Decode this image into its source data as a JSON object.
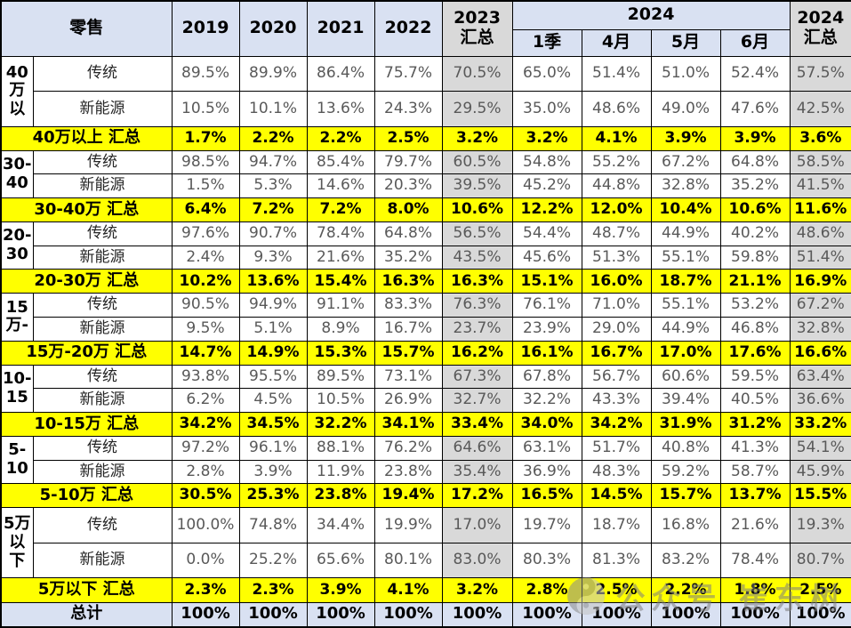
{
  "chart_data": {
    "type": "table",
    "title": "零售",
    "corner": "零售",
    "years": [
      "2019",
      "2020",
      "2021",
      "2022"
    ],
    "col_2023_summary": "2023\n汇总",
    "group_2024": "2024",
    "months": [
      "1季",
      "4月",
      "5月",
      "6月"
    ],
    "col_2024_summary": "2024\n汇总",
    "column_keys": [
      "2019",
      "2020",
      "2021",
      "2022",
      "2023汇总",
      "2024-1季",
      "2024-4月",
      "2024-5月",
      "2024-6月",
      "2024汇总"
    ],
    "groups": [
      {
        "label": "40\n万以",
        "rows": [
          {
            "name": "传统",
            "values": [
              "89.5%",
              "89.9%",
              "86.4%",
              "75.7%",
              "70.5%",
              "65.0%",
              "51.4%",
              "51.0%",
              "52.4%",
              "57.5%"
            ]
          },
          {
            "name": "新能源",
            "values": [
              "10.5%",
              "10.1%",
              "13.6%",
              "24.3%",
              "29.5%",
              "35.0%",
              "48.6%",
              "49.0%",
              "47.6%",
              "42.5%"
            ]
          }
        ],
        "summary": {
          "label": "40万以上 汇总",
          "values": [
            "1.7%",
            "2.2%",
            "2.2%",
            "2.5%",
            "3.2%",
            "3.2%",
            "4.1%",
            "3.9%",
            "3.9%",
            "3.6%"
          ]
        }
      },
      {
        "label": "30-\n40",
        "rows": [
          {
            "name": "传统",
            "values": [
              "98.5%",
              "94.7%",
              "85.4%",
              "79.7%",
              "60.5%",
              "54.8%",
              "55.2%",
              "67.2%",
              "64.8%",
              "58.5%"
            ]
          },
          {
            "name": "新能源",
            "values": [
              "1.5%",
              "5.3%",
              "14.6%",
              "20.3%",
              "39.5%",
              "45.2%",
              "44.8%",
              "32.8%",
              "35.2%",
              "41.5%"
            ]
          }
        ],
        "summary": {
          "label": "30-40万 汇总",
          "values": [
            "6.4%",
            "7.2%",
            "7.2%",
            "8.0%",
            "10.6%",
            "12.2%",
            "12.0%",
            "10.4%",
            "10.6%",
            "11.6%"
          ]
        }
      },
      {
        "label": "20-\n30",
        "rows": [
          {
            "name": "传统",
            "values": [
              "97.6%",
              "90.7%",
              "78.4%",
              "64.8%",
              "56.5%",
              "54.4%",
              "48.7%",
              "44.9%",
              "40.2%",
              "48.6%"
            ]
          },
          {
            "name": "新能源",
            "values": [
              "2.4%",
              "9.3%",
              "21.6%",
              "35.2%",
              "43.5%",
              "45.6%",
              "51.3%",
              "55.1%",
              "59.8%",
              "51.4%"
            ]
          }
        ],
        "summary": {
          "label": "20-30万 汇总",
          "values": [
            "10.2%",
            "13.6%",
            "15.4%",
            "16.3%",
            "16.3%",
            "15.1%",
            "16.0%",
            "18.7%",
            "21.1%",
            "16.9%"
          ]
        }
      },
      {
        "label": "15\n万-",
        "rows": [
          {
            "name": "传统",
            "values": [
              "90.5%",
              "94.9%",
              "91.1%",
              "83.3%",
              "76.3%",
              "76.1%",
              "71.0%",
              "55.1%",
              "53.2%",
              "67.2%"
            ]
          },
          {
            "name": "新能源",
            "values": [
              "9.5%",
              "5.1%",
              "8.9%",
              "16.7%",
              "23.7%",
              "23.9%",
              "29.0%",
              "44.9%",
              "46.8%",
              "32.8%"
            ]
          }
        ],
        "summary": {
          "label": "15万-20万 汇总",
          "values": [
            "14.7%",
            "14.9%",
            "15.3%",
            "15.7%",
            "16.2%",
            "16.1%",
            "16.7%",
            "17.0%",
            "17.6%",
            "16.6%"
          ]
        }
      },
      {
        "label": "10-\n15",
        "rows": [
          {
            "name": "传统",
            "values": [
              "93.8%",
              "95.5%",
              "89.5%",
              "73.1%",
              "67.3%",
              "67.8%",
              "56.7%",
              "60.6%",
              "59.5%",
              "63.4%"
            ]
          },
          {
            "name": "新能源",
            "values": [
              "6.2%",
              "4.5%",
              "10.5%",
              "26.9%",
              "32.7%",
              "32.2%",
              "43.3%",
              "39.4%",
              "40.5%",
              "36.6%"
            ]
          }
        ],
        "summary": {
          "label": "10-15万 汇总",
          "values": [
            "34.2%",
            "34.5%",
            "32.2%",
            "34.1%",
            "33.4%",
            "34.0%",
            "34.2%",
            "31.9%",
            "31.2%",
            "33.2%"
          ]
        }
      },
      {
        "label": "5-\n10",
        "rows": [
          {
            "name": "传统",
            "values": [
              "97.2%",
              "96.1%",
              "88.1%",
              "76.2%",
              "64.6%",
              "63.1%",
              "51.7%",
              "40.8%",
              "41.3%",
              "54.1%"
            ]
          },
          {
            "name": "新能源",
            "values": [
              "2.8%",
              "3.9%",
              "11.9%",
              "23.8%",
              "35.4%",
              "36.9%",
              "48.3%",
              "59.2%",
              "58.7%",
              "45.9%"
            ]
          }
        ],
        "summary": {
          "label": "5-10万 汇总",
          "values": [
            "30.5%",
            "25.3%",
            "23.8%",
            "19.4%",
            "17.2%",
            "16.5%",
            "14.5%",
            "15.7%",
            "13.7%",
            "15.5%"
          ]
        }
      },
      {
        "label": "5万\n以下",
        "rows": [
          {
            "name": "传统",
            "values": [
              "100.0%",
              "74.8%",
              "34.4%",
              "19.9%",
              "17.0%",
              "19.7%",
              "18.7%",
              "16.8%",
              "21.6%",
              "19.3%"
            ]
          },
          {
            "name": "新能源",
            "values": [
              "0.0%",
              "25.2%",
              "65.6%",
              "80.1%",
              "83.0%",
              "80.3%",
              "81.3%",
              "83.2%",
              "78.4%",
              "80.7%"
            ]
          }
        ],
        "summary": {
          "label": "5万以下 汇总",
          "values": [
            "2.3%",
            "2.3%",
            "3.9%",
            "4.1%",
            "3.2%",
            "2.8%",
            "2.5%",
            "2.2%",
            "1.8%",
            "2.5%"
          ]
        }
      }
    ],
    "total": {
      "label": "总计",
      "values": [
        "100%",
        "100%",
        "100%",
        "100%",
        "100%",
        "100%",
        "100%",
        "100%",
        "100%",
        "100%"
      ]
    }
  },
  "watermark": {
    "icon": "taiji-logo-icon",
    "text": "公众号 崔东树"
  },
  "colors": {
    "header_bg": "#D9E1F2",
    "summary_row_bg": "#FFFF00",
    "gray_column_bg": "#D9D9D9",
    "total_row_bg": "#D9E1F2",
    "border": "#000000",
    "value_text": "#595959",
    "watermark_text": "#7D7D7D"
  }
}
